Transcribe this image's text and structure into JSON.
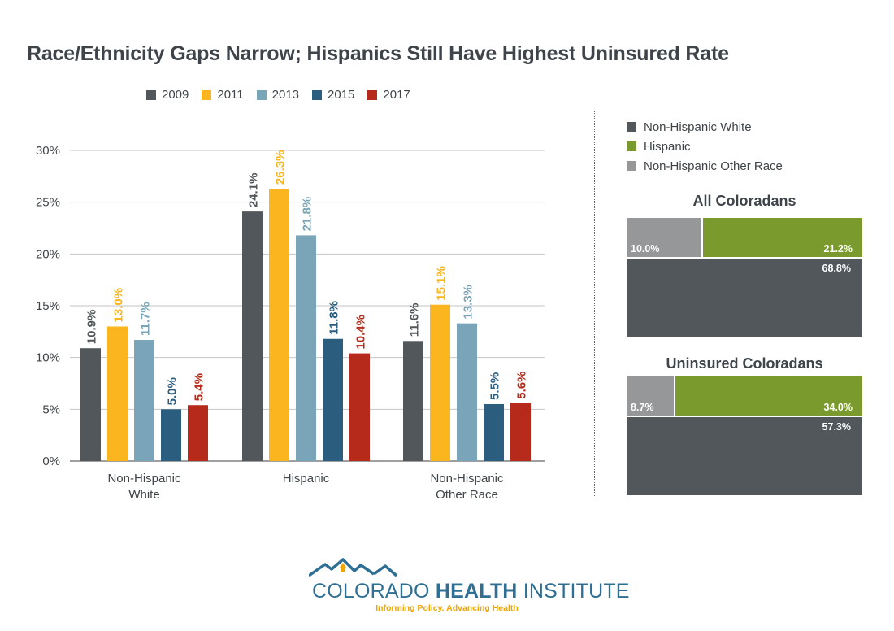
{
  "title": "Race/Ethnicity Gaps Narrow; Hispanics Still Have Highest Uninsured Rate",
  "colors": {
    "2009": "#51575b",
    "2011": "#fbb51e",
    "2013": "#7aa5b8",
    "2015": "#2a5d7e",
    "2017": "#b52a1a",
    "nhw": "#51575b",
    "hisp": "#7a9a2e",
    "other": "#959799"
  },
  "chart_data": [
    {
      "type": "bar",
      "categories": [
        "Non-Hispanic White",
        "Hispanic",
        "Non-Hispanic Other Race"
      ],
      "category_lines": [
        [
          "Non-Hispanic",
          "White"
        ],
        [
          "Hispanic"
        ],
        [
          "Non-Hispanic",
          "Other Race"
        ]
      ],
      "series": [
        {
          "name": "2009",
          "values": [
            10.9,
            24.1,
            11.6
          ],
          "labels": [
            "10.9%",
            "24.1%",
            "11.6%"
          ]
        },
        {
          "name": "2011",
          "values": [
            13.0,
            26.3,
            15.1
          ],
          "labels": [
            "13.0%",
            "26.3%",
            "15.1%"
          ]
        },
        {
          "name": "2013",
          "values": [
            11.7,
            21.8,
            13.3
          ],
          "labels": [
            "11.7%",
            "21.8%",
            "13.3%"
          ]
        },
        {
          "name": "2015",
          "values": [
            5.0,
            11.8,
            5.5
          ],
          "labels": [
            "5.0%",
            "11.8%",
            "5.5%"
          ]
        },
        {
          "name": "2017",
          "values": [
            5.4,
            10.4,
            5.6
          ],
          "labels": [
            "5.4%",
            "10.4%",
            "5.6%"
          ]
        }
      ],
      "ylim": [
        0,
        30
      ],
      "yticks": [
        0,
        5,
        10,
        15,
        20,
        25,
        30
      ],
      "ytick_labels": [
        "0%",
        "5%",
        "10%",
        "15%",
        "20%",
        "25%",
        "30%"
      ],
      "grid": true,
      "legend": "top"
    },
    {
      "type": "area",
      "title": "All Coloradans",
      "segments": [
        {
          "name": "Non-Hispanic Other Race",
          "value": 10.0,
          "label": "10.0%"
        },
        {
          "name": "Hispanic",
          "value": 21.2,
          "label": "21.2%"
        },
        {
          "name": "Non-Hispanic White",
          "value": 68.8,
          "label": "68.8%"
        }
      ]
    },
    {
      "type": "area",
      "title": "Uninsured Coloradans",
      "segments": [
        {
          "name": "Non-Hispanic Other Race",
          "value": 8.7,
          "label": "8.7%"
        },
        {
          "name": "Hispanic",
          "value": 34.0,
          "label": "34.0%"
        },
        {
          "name": "Non-Hispanic White",
          "value": 57.3,
          "label": "57.3%"
        }
      ]
    }
  ],
  "legend_years": [
    "2009",
    "2011",
    "2013",
    "2015",
    "2017"
  ],
  "legend_groups": [
    "Non-Hispanic White",
    "Hispanic",
    "Non-Hispanic Other Race"
  ],
  "logo": {
    "name_light": "COLORADO ",
    "name_bold": "HEALTH",
    "name_light2": " INSTITUTE",
    "tagline": "Informing Policy. Advancing Health"
  }
}
